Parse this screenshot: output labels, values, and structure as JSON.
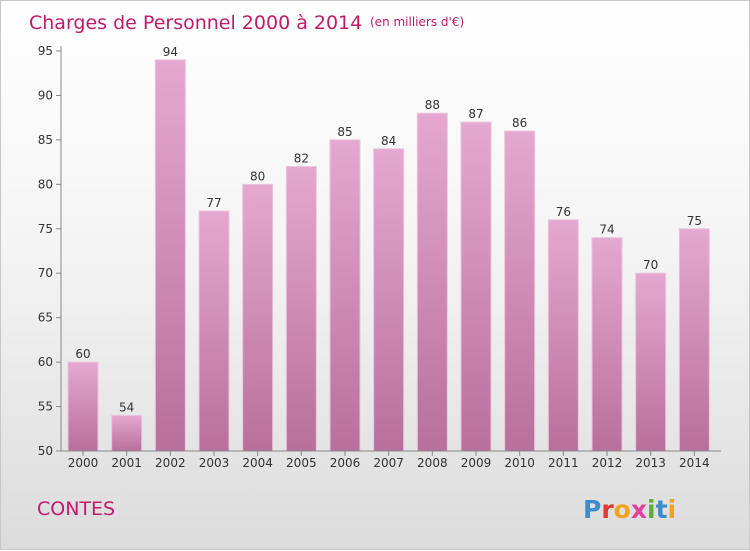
{
  "chart_data": {
    "type": "bar",
    "title": "Charges de Personnel 2000 à 2014",
    "subtitle": "(en milliers d'€)",
    "categories": [
      "2000",
      "2001",
      "2002",
      "2003",
      "2004",
      "2005",
      "2006",
      "2007",
      "2008",
      "2009",
      "2010",
      "2011",
      "2012",
      "2013",
      "2014"
    ],
    "values": [
      60,
      54,
      94,
      77,
      80,
      82,
      85,
      84,
      88,
      87,
      86,
      76,
      74,
      70,
      75
    ],
    "ylim": [
      50,
      95
    ],
    "yticks": [
      50,
      55,
      60,
      65,
      70,
      75,
      80,
      85,
      90,
      95
    ],
    "grid": false,
    "legend": "none",
    "bar_color_top": "#e5a8d0",
    "bar_color_bottom": "#b86f9c",
    "bar_edge_color": "#ecc3dd"
  },
  "location": "CONTES",
  "brand": {
    "logo": "Proxiti",
    "letters": [
      {
        "char": "P",
        "color": "#3d8ccb"
      },
      {
        "char": "r",
        "color": "#e03a2e"
      },
      {
        "char": "o",
        "color": "#f2a31b"
      },
      {
        "char": "x",
        "color": "#e0419b"
      },
      {
        "char": "i",
        "color": "#5fae3a"
      },
      {
        "char": "t",
        "color": "#3d8ccb"
      },
      {
        "char": "i",
        "color": "#f2a31b"
      }
    ]
  }
}
